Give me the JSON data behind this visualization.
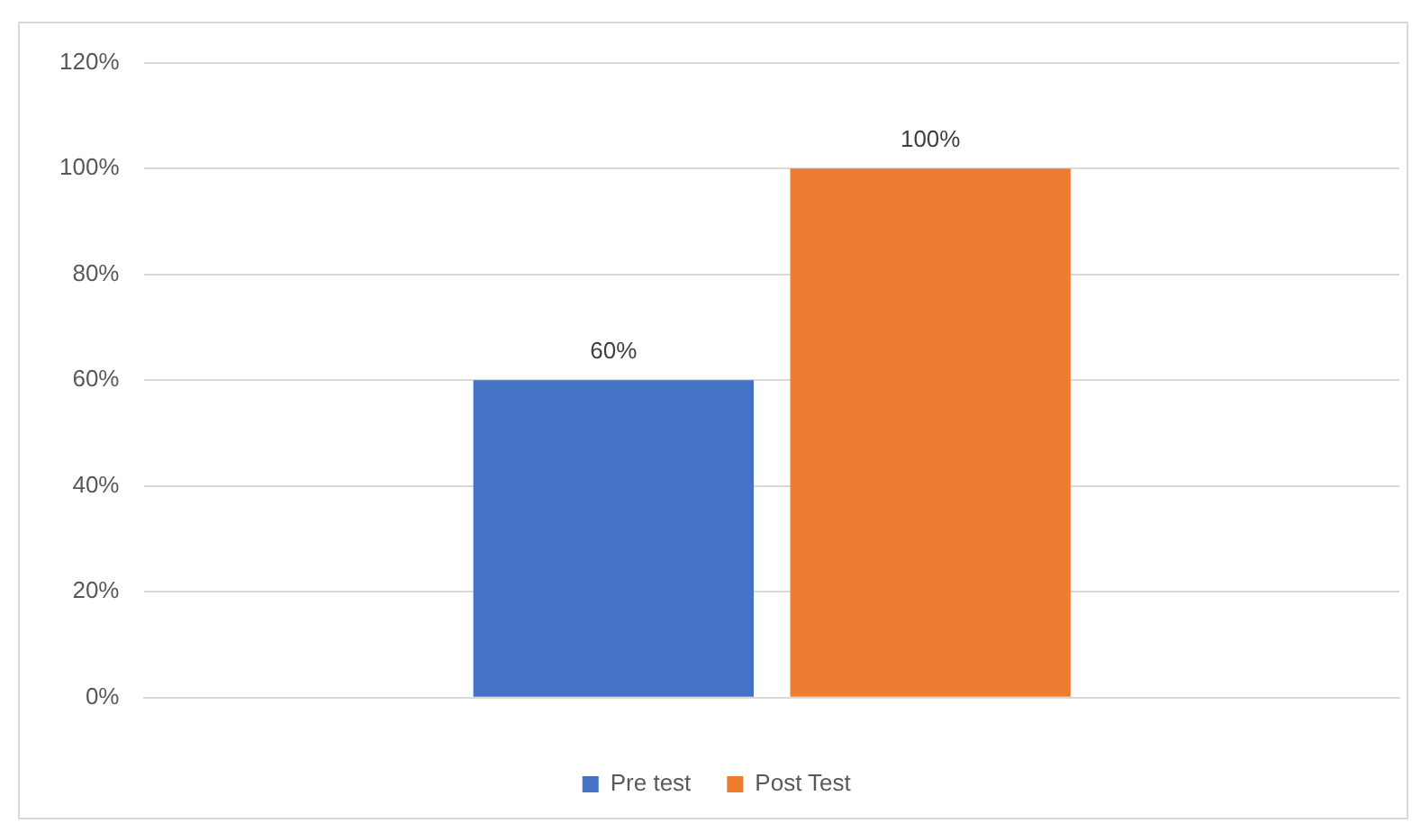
{
  "chart_data": {
    "type": "bar",
    "categories": [
      null
    ],
    "series": [
      {
        "name": "Pre test",
        "color": "#4472c4",
        "values": [
          60
        ],
        "value_labels": [
          "60%"
        ]
      },
      {
        "name": "Post Test",
        "color": "#ed7d31",
        "values": [
          100
        ],
        "value_labels": [
          "100%"
        ]
      }
    ],
    "ylim": [
      0,
      120
    ],
    "yticks": [
      {
        "value": 0,
        "label": "0%"
      },
      {
        "value": 20,
        "label": "20%"
      },
      {
        "value": 40,
        "label": "40%"
      },
      {
        "value": 60,
        "label": "60%"
      },
      {
        "value": 80,
        "label": "80%"
      },
      {
        "value": 100,
        "label": "100%"
      },
      {
        "value": 120,
        "label": "120%"
      }
    ],
    "grid": "y",
    "legend": "bottom"
  }
}
